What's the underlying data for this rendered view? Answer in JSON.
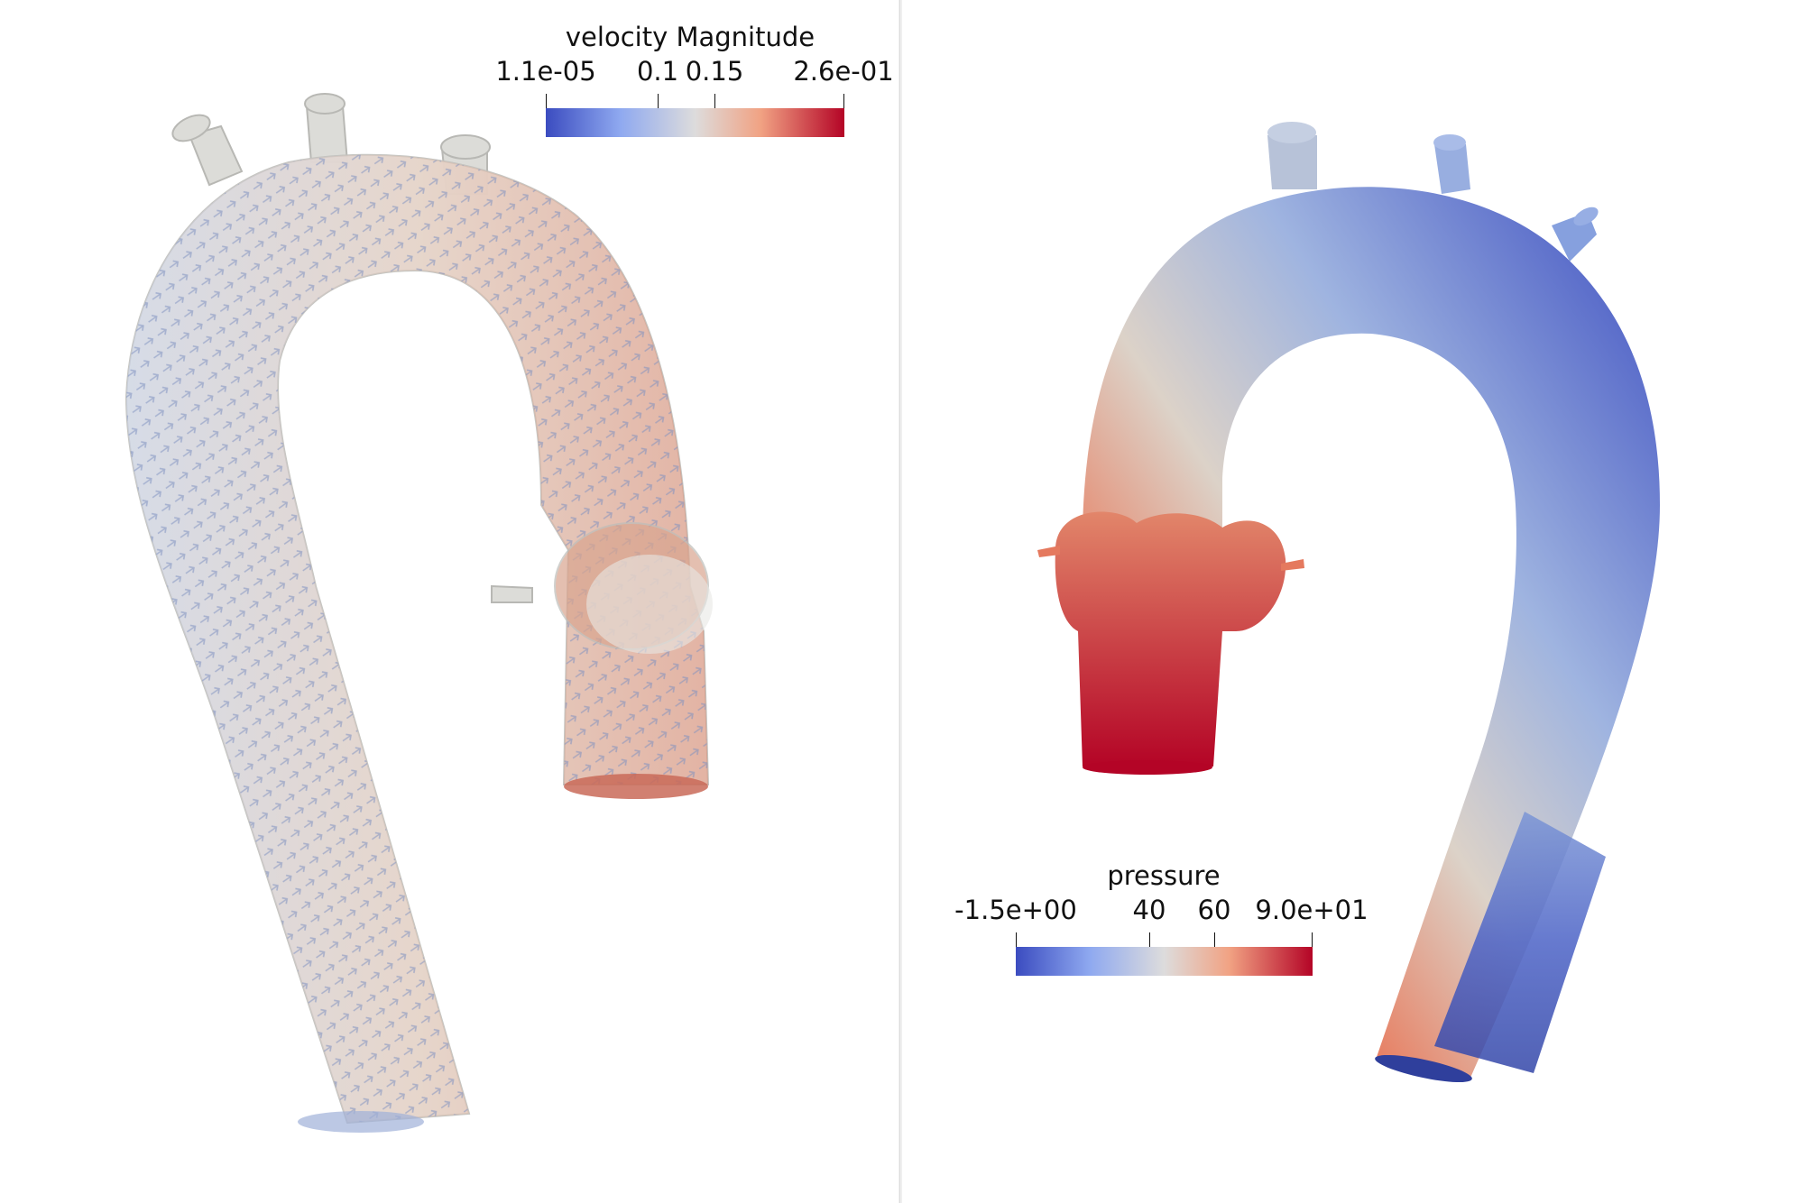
{
  "views": {
    "left": {
      "field": "velocity",
      "legend": {
        "title": "velocity Magnitude",
        "ticks": [
          "1.1e-05",
          "0.1",
          "0.15",
          "2.6e-01"
        ],
        "tick_values": [
          1.1e-05,
          0.1,
          0.15,
          0.26
        ],
        "range": [
          1.1e-05,
          0.26
        ]
      }
    },
    "right": {
      "field": "pressure",
      "legend": {
        "title": "pressure",
        "ticks": [
          "-1.5e+00",
          "40",
          "60",
          "9.0e+01"
        ],
        "tick_values": [
          -1.5,
          40,
          60,
          90
        ],
        "range": [
          -1.5,
          90
        ]
      }
    }
  },
  "colormap": {
    "name": "coolwarm",
    "low": "#3b4cc0",
    "mid": "#dddcdc",
    "high": "#b40426"
  },
  "icons": {
    "left_render": "aorta-velocity-glyph-icon",
    "right_render": "aorta-pressure-surface-icon"
  }
}
